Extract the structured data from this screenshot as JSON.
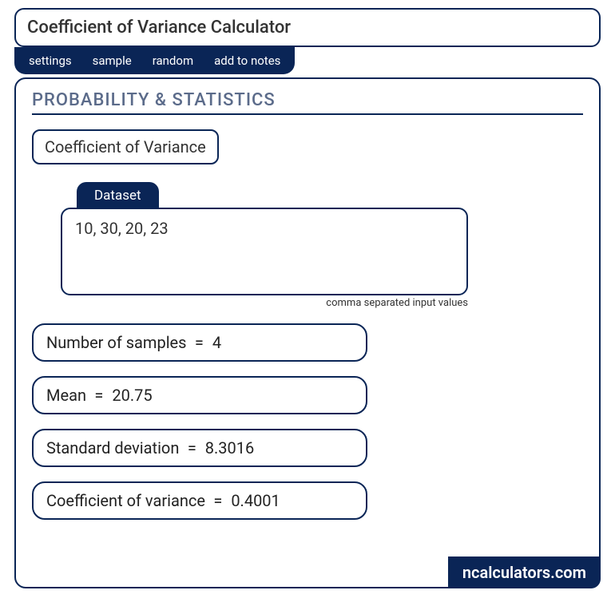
{
  "colors": {
    "primary": "#0a2556",
    "text": "#333333",
    "heading": "#5b6b8a",
    "background": "#ffffff"
  },
  "header": {
    "title": "Coefficient of Variance Calculator"
  },
  "tabs": {
    "items": [
      "settings",
      "sample",
      "random",
      "add to notes"
    ]
  },
  "section": {
    "heading": "PROBABILITY & STATISTICS",
    "subtitle": "Coefficient of Variance"
  },
  "dataset": {
    "tab_label": "Dataset",
    "value": "10, 30, 20, 23",
    "hint": "comma separated input values"
  },
  "results": {
    "sample_count": {
      "label": "Number of samples",
      "value": "4"
    },
    "mean": {
      "label": "Mean",
      "value": "20.75"
    },
    "std_dev": {
      "label": "Standard deviation",
      "value": "8.3016"
    },
    "cov": {
      "label": "Coefficient of variance",
      "value": "0.4001"
    }
  },
  "brand": "ncalculators.com"
}
